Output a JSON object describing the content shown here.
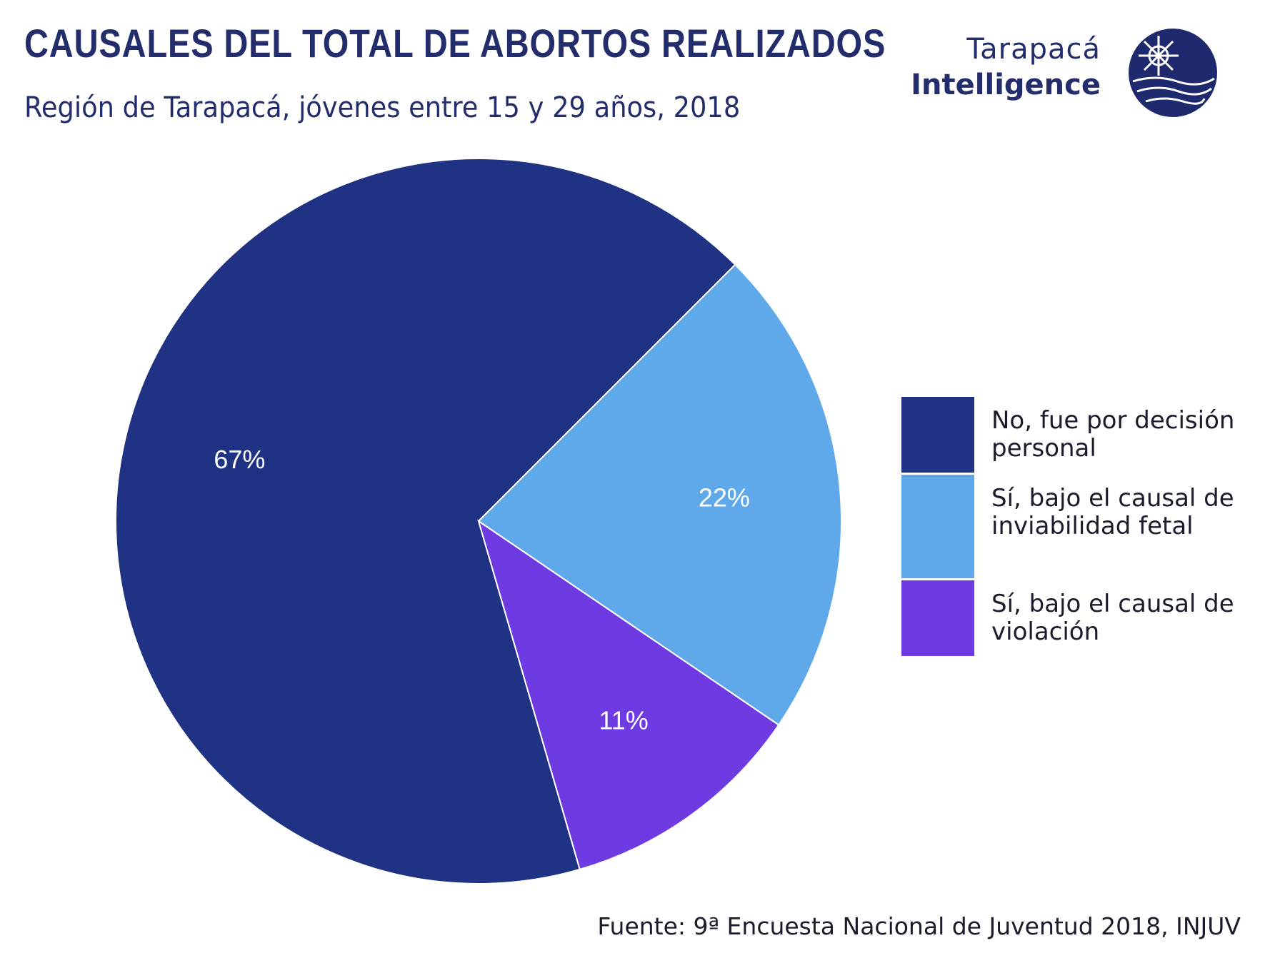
{
  "header": {
    "title": "CAUSALES DEL TOTAL DE ABORTOS REALIZADOS",
    "subtitle": "Región de Tarapacá, jóvenes entre 15 y 29 años, 2018"
  },
  "brand": {
    "line1": "Tarapacá",
    "line2": "Intelligence",
    "logo_icon": "sun-over-sea-logo-icon"
  },
  "chart_data": {
    "type": "pie",
    "title": "CAUSALES DEL TOTAL DE ABORTOS REALIZADOS",
    "subtitle": "Región de Tarapacá, jóvenes entre 15 y 29 años, 2018",
    "categories": [
      "No, fue por decisión personal",
      "Sí, bajo el causal de inviabilidad fetal",
      "Sí, bajo el causal de violación"
    ],
    "values": [
      67,
      22,
      11
    ],
    "labels": [
      "67%",
      "22%",
      "11%"
    ],
    "colors": [
      "#1f3283",
      "#5fa9ea",
      "#6e3ae1"
    ],
    "legend_position": "right"
  },
  "legend": {
    "items": [
      {
        "label": "No, fue por decisión personal",
        "color": "#1f3283"
      },
      {
        "label": "Sí, bajo el causal de inviabilidad fetal",
        "color": "#5fa9ea"
      },
      {
        "label": "Sí, bajo el causal de violación",
        "color": "#6e3ae1"
      }
    ]
  },
  "footer": {
    "source": "Fuente: 9ª Encuesta Nacional de Juventud 2018, INJUV"
  }
}
